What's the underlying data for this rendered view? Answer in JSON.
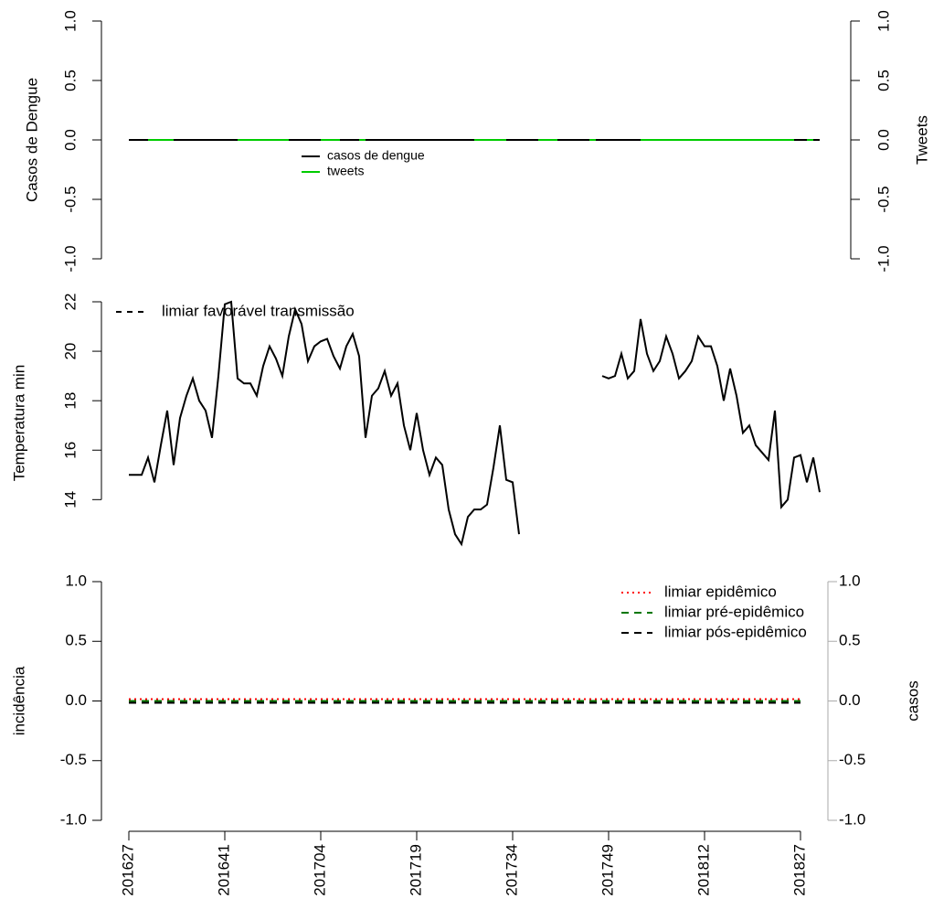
{
  "chart_data": [
    {
      "type": "line",
      "ylabel": "Casos de Dengue",
      "y2label": "Tweets",
      "ylim": [
        -1,
        1
      ],
      "yticks": [
        {
          "value": -1,
          "label": "-1.0"
        },
        {
          "value": -0.5,
          "label": "-0.5"
        },
        {
          "value": 0,
          "label": "0.0"
        },
        {
          "value": 0.5,
          "label": "0.5"
        },
        {
          "value": 1,
          "label": "1.0"
        }
      ],
      "y2lim": [
        -1,
        1
      ],
      "y2ticks": [
        {
          "value": -1,
          "label": "-1.0"
        },
        {
          "value": -0.5,
          "label": "-0.5"
        },
        {
          "value": 0,
          "label": "0.0"
        },
        {
          "value": 0.5,
          "label": "0.5"
        },
        {
          "value": 1,
          "label": "1.0"
        }
      ],
      "series": [
        {
          "name": "casos de dengue",
          "color": "#000000",
          "values": [
            0,
            0,
            0,
            0,
            0,
            0,
            0,
            0,
            0,
            0,
            0,
            0,
            0,
            0,
            0,
            0,
            0,
            0,
            0,
            0,
            0,
            0,
            0,
            0,
            0,
            0,
            0,
            0,
            0,
            0,
            0,
            0,
            0,
            0,
            0,
            0,
            0,
            0,
            0,
            0,
            0,
            0,
            0,
            0,
            0,
            0,
            0,
            0,
            0,
            0,
            0,
            0,
            0,
            0,
            0,
            0,
            0,
            0,
            0,
            0,
            0,
            0,
            0,
            0,
            0,
            0,
            0,
            0,
            0,
            0,
            0,
            0,
            0,
            0,
            0,
            0,
            0,
            0,
            0,
            0,
            0,
            0,
            0,
            0,
            0,
            0,
            0,
            0,
            0,
            0,
            0,
            0,
            0,
            0,
            0,
            0,
            0,
            0,
            0,
            0,
            0,
            0,
            0,
            0,
            0,
            0,
            0,
            0,
            0
          ]
        },
        {
          "name": "tweets",
          "color": "#00cc00",
          "axis": "y2",
          "values": [
            null,
            null,
            null,
            0,
            0,
            0,
            0,
            0,
            null,
            null,
            null,
            null,
            null,
            null,
            null,
            null,
            null,
            0,
            0,
            0,
            0,
            0,
            0,
            0,
            0,
            0,
            null,
            null,
            null,
            null,
            0,
            0,
            0,
            0,
            null,
            null,
            0,
            0,
            null,
            null,
            null,
            null,
            null,
            null,
            null,
            null,
            null,
            null,
            null,
            null,
            null,
            null,
            null,
            null,
            0,
            0,
            0,
            0,
            0,
            0,
            null,
            null,
            null,
            null,
            0,
            0,
            0,
            0,
            null,
            null,
            null,
            null,
            0,
            0,
            null,
            null,
            null,
            null,
            null,
            null,
            0,
            0,
            0,
            0,
            0,
            0,
            0,
            0,
            0,
            0,
            0,
            0,
            0,
            0,
            0,
            0,
            0,
            0,
            0,
            0,
            0,
            0,
            0,
            0,
            0,
            null,
            0,
            0,
            null
          ]
        }
      ],
      "legend": "center"
    },
    {
      "type": "line",
      "ylabel": "Temperatura min",
      "ylim": [
        12.2,
        22
      ],
      "yticks": [
        14,
        16,
        18,
        20,
        22
      ],
      "series": [
        {
          "name": "Temperatura min",
          "color": "#000000",
          "values": [
            15.0,
            15.0,
            15.0,
            15.7,
            14.7,
            16.2,
            17.6,
            15.4,
            17.3,
            18.2,
            18.9,
            18.0,
            17.6,
            16.5,
            19.0,
            21.9,
            22.0,
            18.9,
            18.7,
            18.7,
            18.2,
            19.4,
            20.2,
            19.7,
            19.0,
            20.6,
            21.7,
            21.1,
            19.6,
            20.2,
            20.4,
            20.5,
            19.8,
            19.3,
            20.2,
            20.7,
            19.8,
            16.5,
            18.2,
            18.5,
            19.2,
            18.2,
            18.7,
            17.0,
            16.0,
            17.5,
            16.0,
            15.0,
            15.7,
            15.4,
            13.6,
            12.6,
            12.2,
            13.3,
            13.6,
            13.6,
            13.8,
            15.3,
            17.0,
            14.8,
            14.7,
            12.6,
            null,
            null,
            null,
            null,
            null,
            null,
            null,
            null,
            null,
            null,
            null,
            null,
            19.0,
            18.9,
            19.0,
            19.9,
            18.9,
            19.2,
            21.3,
            19.9,
            19.2,
            19.6,
            20.6,
            19.9,
            18.9,
            19.2,
            19.6,
            20.6,
            20.2,
            20.2,
            19.4,
            18.0,
            19.3,
            18.2,
            16.7,
            17.0,
            16.2,
            15.9,
            15.6,
            17.6,
            13.7,
            14.0,
            15.7,
            15.8,
            14.7,
            15.7,
            14.3
          ]
        }
      ],
      "thresholds": [
        {
          "name": "limiar favorável transmissão",
          "color": "#000000",
          "dash": "6,6"
        }
      ],
      "legend": "top-left"
    },
    {
      "type": "threshold",
      "ylabel": "incidência",
      "y2label": "casos",
      "ylim": [
        -1,
        1
      ],
      "yticks": [
        {
          "value": -1,
          "label": "-1.0"
        },
        {
          "value": -0.5,
          "label": "-0.5"
        },
        {
          "value": 0,
          "label": "0.0"
        },
        {
          "value": 0.5,
          "label": "0.5"
        },
        {
          "value": 1,
          "label": "1.0"
        }
      ],
      "y2lim": [
        -1,
        1
      ],
      "y2ticks": [
        {
          "value": -1,
          "label": "-1.0"
        },
        {
          "value": -0.5,
          "label": "-0.5"
        },
        {
          "value": 0,
          "label": "0.0"
        },
        {
          "value": 0.5,
          "label": "0.5"
        },
        {
          "value": 1,
          "label": "1.0"
        }
      ],
      "y2color": "#aaaaaa",
      "categories": [
        "201627",
        null,
        null,
        null,
        null,
        null,
        null,
        null,
        null,
        null,
        null,
        null,
        null,
        null,
        null,
        "201641",
        null,
        null,
        null,
        null,
        null,
        null,
        null,
        null,
        null,
        null,
        null,
        null,
        null,
        null,
        "201704",
        null,
        null,
        null,
        null,
        null,
        null,
        null,
        null,
        null,
        null,
        null,
        null,
        null,
        null,
        "201719",
        null,
        null,
        null,
        null,
        null,
        null,
        null,
        null,
        null,
        null,
        null,
        null,
        null,
        null,
        "201734",
        null,
        null,
        null,
        null,
        null,
        null,
        null,
        null,
        null,
        null,
        null,
        null,
        null,
        null,
        "201749",
        null,
        null,
        null,
        null,
        null,
        null,
        null,
        null,
        null,
        null,
        null,
        null,
        null,
        null,
        "201812",
        null,
        null,
        null,
        null,
        null,
        null,
        null,
        null,
        null,
        null,
        null,
        null,
        null,
        null,
        "201827",
        null,
        null,
        null
      ],
      "thresholds": [
        {
          "name": "limiar epidêmico",
          "color": "#ff0000",
          "dash": "2,4",
          "value": 0
        },
        {
          "name": "limiar pré-epidêmico",
          "color": "#007700",
          "dash": "8,6",
          "value": 0
        },
        {
          "name": "limiar pós-epidêmico",
          "color": "#000000",
          "dash": "8,6",
          "value": 0
        }
      ],
      "legend": "top-right"
    }
  ]
}
